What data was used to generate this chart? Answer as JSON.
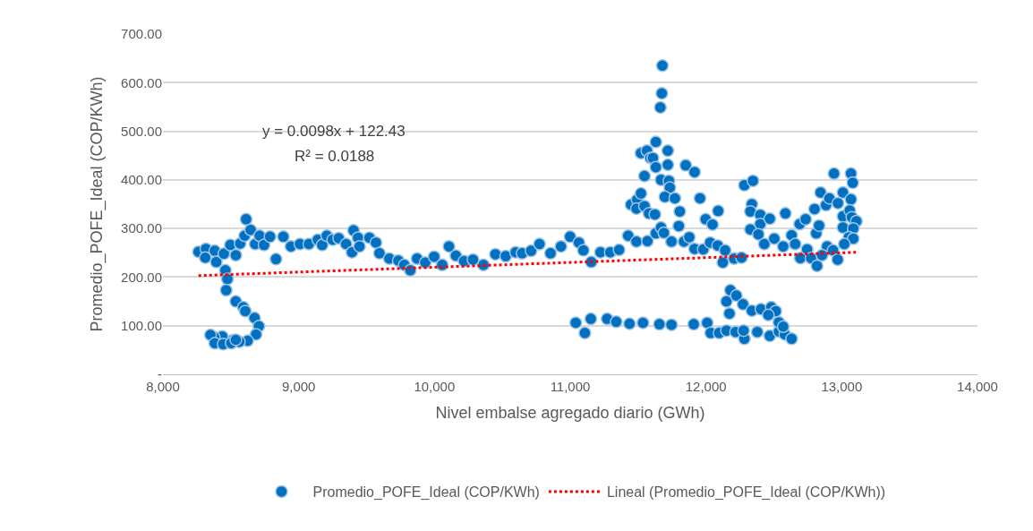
{
  "chart_data": {
    "type": "scatter",
    "xlabel": "Nivel embalse agregado diario (GWh)",
    "ylabel": "Promedio_POFE_Ideal (COP/KWh)",
    "xlim": [
      8000,
      14000
    ],
    "xticks": [
      {
        "value": 8000,
        "label": "8,000"
      },
      {
        "value": 9000,
        "label": "9,000"
      },
      {
        "value": 10000,
        "label": "10,000"
      },
      {
        "value": 11000,
        "label": "11,000"
      },
      {
        "value": 12000,
        "label": "12,000"
      },
      {
        "value": 13000,
        "label": "13,000"
      },
      {
        "value": 14000,
        "label": "14,000"
      }
    ],
    "ylim": [
      0,
      700
    ],
    "yticks": [
      {
        "value": 0,
        "label": "-"
      },
      {
        "value": 100,
        "label": "100.00"
      },
      {
        "value": 200,
        "label": "200.00"
      },
      {
        "value": 300,
        "label": "300.00"
      },
      {
        "value": 400,
        "label": "400.00"
      },
      {
        "value": 500,
        "label": "500.00"
      },
      {
        "value": 600,
        "label": "600.00"
      },
      {
        "value": 700,
        "label": "700.00"
      }
    ],
    "grid": "y",
    "legend": "bottom",
    "marker": "circle",
    "annotations": [
      "y = 0.0098x + 122.43",
      "R² = 0.0188"
    ],
    "series": [
      {
        "name": "Promedio_POFE_Ideal (COP/KWh)",
        "color": "#0070c0",
        "x": [
          8262,
          8317,
          8312,
          8382,
          8393,
          8449,
          8460,
          8475,
          8466,
          8497,
          8537,
          8569,
          8613,
          8602,
          8646,
          8680,
          8712,
          8745,
          8789,
          8833,
          8887,
          8943,
          9009,
          9075,
          9141,
          9173,
          9207,
          9251,
          9295,
          9349,
          9393,
          9404,
          9437,
          9448,
          9521,
          9569,
          9595,
          9668,
          9734,
          9778,
          9822,
          9872,
          9932,
          9998,
          10057,
          10107,
          10158,
          10218,
          10284,
          10361,
          10449,
          10525,
          10598,
          10646,
          10712,
          10774,
          10855,
          10932,
          10999,
          11064,
          11097,
          8537,
          8592,
          8607,
          8675,
          8707,
          8686,
          8624,
          8563,
          8514,
          8437,
          8378,
          8350,
          8382,
          8444,
          8503,
          8537,
          11041,
          11108,
          11152,
          11272,
          11339,
          11437,
          11536,
          11657,
          11746,
          11910,
          12009,
          12035,
          12097,
          12151,
          12218,
          12283,
          12277,
          12378,
          12470,
          12537,
          12581,
          12631,
          12151,
          12180,
          12224,
          12173,
          12273,
          12338,
          12405,
          12481,
          12514,
          12459,
          12537,
          12569,
          11155,
          11223,
          11295,
          11360,
          11427,
          11488,
          11569,
          11631,
          11669,
          11690,
          11746,
          11448,
          11493,
          11521,
          11488,
          11547,
          11580,
          11624,
          11547,
          11521,
          11565,
          11591,
          11609,
          11631,
          11631,
          11669,
          11719,
          11719,
          11727,
          11734,
          11697,
          11771,
          11807,
          11800,
          11679,
          11675,
          11664,
          11851,
          11916,
          11838,
          11877,
          11916,
          11980,
          12031,
          12086,
          12141,
          12124,
          12207,
          12262,
          11956,
          11998,
          12048,
          12090,
          12283,
          12346,
          12338,
          12327,
          12400,
          12400,
          12470,
          12327,
          12386,
          12430,
          12503,
          12569,
          12585,
          12631,
          12657,
          12690,
          12734,
          12745,
          12695,
          12774,
          12818,
          12812,
          12833,
          12800,
          12844,
          12884,
          12909,
          12892,
          12855,
          12936,
          12970,
          12972,
          13009,
          12943,
          13068,
          13081,
          13068,
          13009,
          13059,
          13009,
          13075,
          13108,
          13085,
          13053,
          13085,
          13019
        ],
        "values": [
          252,
          258,
          240,
          254,
          231,
          248,
          214,
          196,
          173,
          266,
          245,
          269,
          319,
          285,
          297,
          268,
          285,
          266,
          283,
          237,
          283,
          263,
          268,
          268,
          277,
          266,
          285,
          277,
          280,
          268,
          251,
          296,
          281,
          263,
          281,
          271,
          249,
          238,
          234,
          225,
          214,
          238,
          230,
          242,
          225,
          263,
          244,
          233,
          236,
          225,
          247,
          243,
          251,
          249,
          254,
          268,
          249,
          263,
          283,
          271,
          255,
          150,
          138,
          130,
          116,
          99,
          82,
          69,
          67,
          70,
          78,
          76,
          81,
          64,
          62,
          64,
          71,
          106,
          85,
          114,
          114,
          108,
          104,
          106,
          103,
          102,
          103,
          106,
          85,
          85,
          90,
          87,
          73,
          90,
          87,
          79,
          88,
          82,
          73,
          150,
          173,
          162,
          125,
          144,
          131,
          134,
          138,
          130,
          122,
          107,
          98,
          231,
          251,
          251,
          256,
          285,
          273,
          274,
          290,
          302,
          291,
          273,
          349,
          359,
          372,
          341,
          346,
          331,
          329,
          408,
          455,
          460,
          445,
          445,
          478,
          426,
          400,
          460,
          431,
          398,
          384,
          365,
          362,
          335,
          305,
          635,
          578,
          549,
          430,
          416,
          273,
          282,
          258,
          257,
          271,
          265,
          255,
          230,
          238,
          240,
          362,
          319,
          308,
          336,
          389,
          398,
          350,
          335,
          328,
          309,
          320,
          298,
          288,
          268,
          279,
          263,
          331,
          286,
          268,
          309,
          319,
          257,
          239,
          239,
          223,
          290,
          306,
          340,
          374,
          348,
          362,
          263,
          245,
          255,
          236,
          352,
          374,
          413,
          413,
          394,
          360,
          325,
          337,
          302,
          323,
          315,
          300,
          282,
          279,
          268
        ]
      },
      {
        "name": "Lineal (Promedio_POFE_Ideal (COP/KWh))",
        "type": "line",
        "color": "#ff0000",
        "line_style": "dotted",
        "marker": "none",
        "x": [
          8262,
          13108
        ],
        "values": [
          203,
          251
        ]
      }
    ]
  }
}
